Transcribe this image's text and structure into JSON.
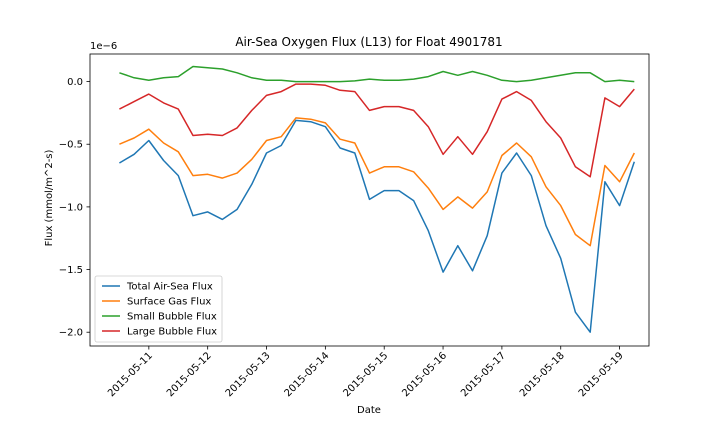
{
  "chart_data": {
    "type": "line",
    "title": "Air-Sea Oxygen Flux (L13) for Float 4901781",
    "xlabel": "Date",
    "ylabel": "Flux (mmol/m^2-s)",
    "y_offset_label": "1e−6",
    "y_scale_factor": 1e-06,
    "xlim": [
      "2015-05-10T00:00",
      "2015-05-19T12:00"
    ],
    "ylim": [
      -2.11e-06,
      2.2e-07
    ],
    "grid": false,
    "legend_position": "lower-left",
    "x_ticks": [
      "2015-05-11",
      "2015-05-12",
      "2015-05-13",
      "2015-05-14",
      "2015-05-15",
      "2015-05-16",
      "2015-05-17",
      "2015-05-18",
      "2015-05-19"
    ],
    "y_ticks": [
      {
        "value": 0.0,
        "label": "0.0"
      },
      {
        "value": -5e-07,
        "label": "−0.5"
      },
      {
        "value": -1e-06,
        "label": "−1.0"
      },
      {
        "value": -1.5e-06,
        "label": "−1.5"
      },
      {
        "value": -2e-06,
        "label": "−2.0"
      }
    ],
    "x": [
      "2015-05-10T12:00",
      "2015-05-10T18:00",
      "2015-05-11T00:00",
      "2015-05-11T06:00",
      "2015-05-11T12:00",
      "2015-05-11T18:00",
      "2015-05-12T00:00",
      "2015-05-12T06:00",
      "2015-05-12T12:00",
      "2015-05-12T18:00",
      "2015-05-13T00:00",
      "2015-05-13T06:00",
      "2015-05-13T12:00",
      "2015-05-13T18:00",
      "2015-05-14T00:00",
      "2015-05-14T06:00",
      "2015-05-14T12:00",
      "2015-05-14T18:00",
      "2015-05-15T00:00",
      "2015-05-15T06:00",
      "2015-05-15T12:00",
      "2015-05-15T18:00",
      "2015-05-16T00:00",
      "2015-05-16T06:00",
      "2015-05-16T12:00",
      "2015-05-16T18:00",
      "2015-05-17T00:00",
      "2015-05-17T06:00",
      "2015-05-17T12:00",
      "2015-05-17T18:00",
      "2015-05-18T00:00",
      "2015-05-18T06:00",
      "2015-05-18T12:00",
      "2015-05-18T18:00",
      "2015-05-19T00:00",
      "2015-05-19T06:00"
    ],
    "series": [
      {
        "name": "Total Air-Sea Flux",
        "color": "#1f77b4",
        "values": [
          -6.5e-07,
          -5.8e-07,
          -4.7e-07,
          -6.3e-07,
          -7.5e-07,
          -1.07e-06,
          -1.04e-06,
          -1.1e-06,
          -1.02e-06,
          -8.2e-07,
          -5.7e-07,
          -5.1e-07,
          -3.1e-07,
          -3.2e-07,
          -3.6e-07,
          -5.3e-07,
          -5.7e-07,
          -9.4e-07,
          -8.7e-07,
          -8.7e-07,
          -9.5e-07,
          -1.19e-06,
          -1.52e-06,
          -1.31e-06,
          -1.51e-06,
          -1.23e-06,
          -7.3e-07,
          -5.7e-07,
          -7.5e-07,
          -1.15e-06,
          -1.41e-06,
          -1.84e-06,
          -2e-06,
          -8e-07,
          -9.9e-07,
          -6.4e-07
        ]
      },
      {
        "name": "Surface Gas Flux",
        "color": "#ff7f0e",
        "values": [
          -5e-07,
          -4.5e-07,
          -3.8e-07,
          -4.9e-07,
          -5.6e-07,
          -7.5e-07,
          -7.4e-07,
          -7.7e-07,
          -7.3e-07,
          -6.2e-07,
          -4.7e-07,
          -4.4e-07,
          -2.9e-07,
          -3e-07,
          -3.3e-07,
          -4.6e-07,
          -4.9e-07,
          -7.3e-07,
          -6.8e-07,
          -6.8e-07,
          -7.2e-07,
          -8.5e-07,
          -1.02e-06,
          -9.2e-07,
          -1.01e-06,
          -8.8e-07,
          -5.9e-07,
          -4.9e-07,
          -6e-07,
          -8.4e-07,
          -9.9e-07,
          -1.22e-06,
          -1.31e-06,
          -6.7e-07,
          -8e-07,
          -5.7e-07
        ]
      },
      {
        "name": "Small Bubble Flux",
        "color": "#2ca02c",
        "values": [
          7e-08,
          3e-08,
          1e-08,
          3e-08,
          4e-08,
          1.2e-07,
          1.1e-07,
          1e-07,
          7e-08,
          3e-08,
          1e-08,
          1e-08,
          0.0,
          0.0,
          0.0,
          0.0,
          5e-09,
          2e-08,
          1e-08,
          1e-08,
          2e-08,
          4e-08,
          8e-08,
          5e-08,
          8e-08,
          5e-08,
          1e-08,
          0.0,
          1e-08,
          3e-08,
          5e-08,
          7e-08,
          7e-08,
          0.0,
          1e-08,
          0.0
        ]
      },
      {
        "name": "Large Bubble Flux",
        "color": "#d62728",
        "values": [
          -2.2e-07,
          -1.6e-07,
          -1e-07,
          -1.7e-07,
          -2.2e-07,
          -4.3e-07,
          -4.2e-07,
          -4.3e-07,
          -3.7e-07,
          -2.3e-07,
          -1.1e-07,
          -8e-08,
          -2e-08,
          -2e-08,
          -3e-08,
          -7e-08,
          -8e-08,
          -2.3e-07,
          -2e-07,
          -2e-07,
          -2.3e-07,
          -3.6e-07,
          -5.8e-07,
          -4.4e-07,
          -5.8e-07,
          -4e-07,
          -1.4e-07,
          -8e-08,
          -1.5e-07,
          -3.2e-07,
          -4.5e-07,
          -6.8e-07,
          -7.6e-07,
          -1.3e-07,
          -2e-07,
          -6e-08
        ]
      }
    ]
  }
}
